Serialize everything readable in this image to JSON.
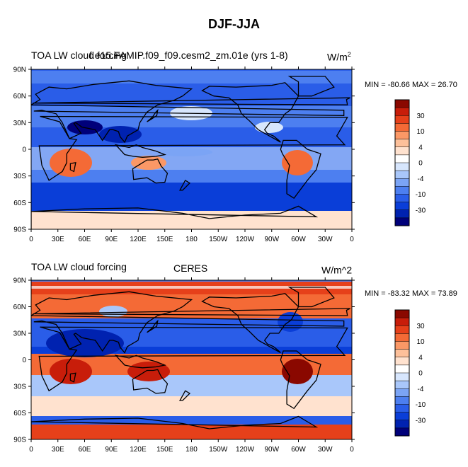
{
  "title": "DJF-JJA",
  "colors": [
    "#00007a",
    "#0022b0",
    "#0a3ed8",
    "#2a5de8",
    "#4d7ff0",
    "#7ba4f5",
    "#a9c7fa",
    "#d7e6fd",
    "#ffffff",
    "#ffe2cf",
    "#fdc09a",
    "#fb9866",
    "#f46a36",
    "#e6401a",
    "#c81d0a",
    "#8a0800"
  ],
  "lat_ticks": [
    "90N",
    "60N",
    "30N",
    "0",
    "30S",
    "60S",
    "90S"
  ],
  "lon_ticks": [
    "0",
    "30E",
    "60E",
    "90E",
    "120E",
    "150E",
    "180",
    "150W",
    "120W",
    "90W",
    "60W",
    "30W",
    "0"
  ],
  "colorbar_labels": [
    "30",
    "10",
    "4",
    "0",
    "-4",
    "-10",
    "-30"
  ],
  "panels": [
    {
      "left_title": "TOA LW cloud forcing",
      "center_title": "f.e15.FAMIP.f09_f09.cesm2_zm.01e (yrs 1-8)",
      "units_main": "W/m",
      "units_sup": "2",
      "min_label": "MIN = -80.66",
      "max_label": "MAX =  26.70",
      "min": -80.66,
      "max": 26.7
    },
    {
      "left_title": "TOA LW cloud forcing",
      "center_title": "CERES",
      "units_main": "W/m^2",
      "units_sup": "",
      "min_label": "MIN = -83.32",
      "max_label": "MAX =  73.89",
      "min": -83.32,
      "max": 73.89
    }
  ]
}
